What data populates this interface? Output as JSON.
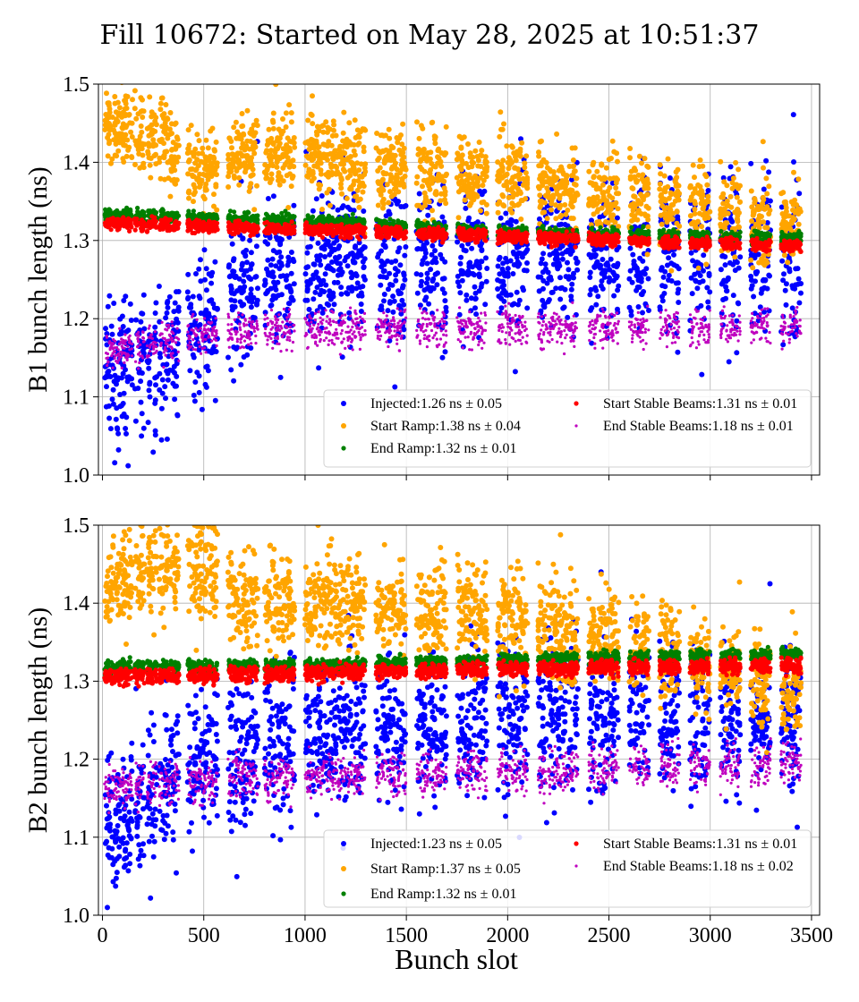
{
  "figure": {
    "title": "Fill 10672: Started on May 28, 2025 at 10:51:37",
    "xlabel": "Bunch slot"
  },
  "chart_data": [
    {
      "type": "scatter",
      "ylabel": "B1 bunch length (ns)",
      "xlim": [
        -20,
        3540
      ],
      "ylim": [
        1.0,
        1.5
      ],
      "x_ticks": [
        0,
        500,
        1000,
        1500,
        2000,
        2500,
        3000,
        3500
      ],
      "y_ticks": [
        1.0,
        1.1,
        1.2,
        1.3,
        1.4,
        1.5
      ],
      "grid": true,
      "legend_position": "lower-right",
      "trains": [
        10,
        60,
        100,
        160,
        220,
        280,
        330,
        420,
        470,
        520,
        620,
        670,
        720,
        800,
        850,
        900,
        1000,
        1050,
        1100,
        1150,
        1200,
        1250,
        1350,
        1400,
        1450,
        1550,
        1600,
        1650,
        1750,
        1800,
        1850,
        1950,
        2000,
        2050,
        2150,
        2200,
        2250,
        2300,
        2400,
        2450,
        2500,
        2600,
        2650,
        2750,
        2800,
        2900,
        2950,
        3050,
        3100,
        3200,
        3250,
        3350,
        3400
      ],
      "train_width": 48,
      "series": [
        {
          "name": "Injected:1.26 ns ± 0.05",
          "color": "#0000ff",
          "trend": [
            [
              0,
              1.13
            ],
            [
              300,
              1.15
            ],
            [
              500,
              1.2
            ],
            [
              800,
              1.26
            ],
            [
              1200,
              1.27
            ],
            [
              2000,
              1.28
            ],
            [
              3400,
              1.28
            ]
          ],
          "spread": 0.045,
          "marker": "dot-large"
        },
        {
          "name": "Start Ramp:1.38 ns ± 0.04",
          "color": "#ffa500",
          "trend": [
            [
              0,
              1.45
            ],
            [
              300,
              1.43
            ],
            [
              450,
              1.39
            ],
            [
              800,
              1.42
            ],
            [
              1200,
              1.4
            ],
            [
              2000,
              1.38
            ],
            [
              3400,
              1.32
            ]
          ],
          "spread": 0.025,
          "marker": "dot-large"
        },
        {
          "name": "End Ramp:1.32 ns ± 0.01",
          "color": "#008000",
          "trend": [
            [
              0,
              1.333
            ],
            [
              1000,
              1.325
            ],
            [
              2000,
              1.31
            ],
            [
              3400,
              1.303
            ]
          ],
          "spread": 0.004,
          "marker": "dot"
        },
        {
          "name": "Start Stable Beams:1.31 ns ± 0.01",
          "color": "#ff0000",
          "trend": [
            [
              0,
              1.322
            ],
            [
              1000,
              1.314
            ],
            [
              2000,
              1.305
            ],
            [
              3400,
              1.293
            ]
          ],
          "spread": 0.004,
          "marker": "dot"
        },
        {
          "name": "End Stable Beams:1.18 ns ± 0.01",
          "color": "#bf00bf",
          "trend": [
            [
              0,
              1.16
            ],
            [
              300,
              1.17
            ],
            [
              600,
              1.185
            ],
            [
              3400,
              1.19
            ]
          ],
          "spread": 0.012,
          "marker": "dot-small"
        }
      ]
    },
    {
      "type": "scatter",
      "ylabel": "B2 bunch length (ns)",
      "xlim": [
        -20,
        3540
      ],
      "ylim": [
        1.0,
        1.5
      ],
      "x_ticks": [
        0,
        500,
        1000,
        1500,
        2000,
        2500,
        3000,
        3500
      ],
      "y_ticks": [
        1.0,
        1.1,
        1.2,
        1.3,
        1.4,
        1.5
      ],
      "grid": true,
      "legend_position": "lower-right",
      "trains": [
        10,
        60,
        100,
        160,
        220,
        280,
        330,
        420,
        470,
        520,
        620,
        670,
        720,
        800,
        850,
        900,
        1000,
        1050,
        1100,
        1150,
        1200,
        1250,
        1350,
        1400,
        1450,
        1550,
        1600,
        1650,
        1750,
        1800,
        1850,
        1950,
        2000,
        2050,
        2150,
        2200,
        2250,
        2300,
        2400,
        2450,
        2500,
        2600,
        2650,
        2750,
        2800,
        2900,
        2950,
        3050,
        3100,
        3200,
        3250,
        3350,
        3400
      ],
      "train_width": 48,
      "series": [
        {
          "name": "Injected:1.23 ns ± 0.05",
          "color": "#0000ff",
          "trend": [
            [
              0,
              1.12
            ],
            [
              300,
              1.16
            ],
            [
              500,
              1.2
            ],
            [
              1000,
              1.23
            ],
            [
              1500,
              1.24
            ],
            [
              2500,
              1.26
            ],
            [
              3400,
              1.25
            ]
          ],
          "spread": 0.045,
          "marker": "dot-large"
        },
        {
          "name": "Start Ramp:1.37 ns ± 0.05",
          "color": "#ffa500",
          "trend": [
            [
              0,
              1.43
            ],
            [
              300,
              1.44
            ],
            [
              550,
              1.45
            ],
            [
              650,
              1.4
            ],
            [
              1200,
              1.4
            ],
            [
              2000,
              1.38
            ],
            [
              2800,
              1.34
            ],
            [
              3400,
              1.29
            ]
          ],
          "spread": 0.03,
          "marker": "dot-large"
        },
        {
          "name": "End Ramp:1.32 ns ± 0.01",
          "color": "#008000",
          "trend": [
            [
              0,
              1.318
            ],
            [
              1000,
              1.32
            ],
            [
              2000,
              1.327
            ],
            [
              3400,
              1.335
            ]
          ],
          "spread": 0.004,
          "marker": "dot"
        },
        {
          "name": "Start Stable Beams:1.31 ns ± 0.01",
          "color": "#ff0000",
          "trend": [
            [
              0,
              1.305
            ],
            [
              1000,
              1.31
            ],
            [
              2000,
              1.316
            ],
            [
              3400,
              1.32
            ]
          ],
          "spread": 0.005,
          "marker": "dot"
        },
        {
          "name": "End Stable Beams:1.18 ns ± 0.02",
          "color": "#bf00bf",
          "trend": [
            [
              0,
              1.16
            ],
            [
              600,
              1.175
            ],
            [
              3400,
              1.195
            ]
          ],
          "spread": 0.014,
          "marker": "dot-small"
        }
      ]
    }
  ]
}
